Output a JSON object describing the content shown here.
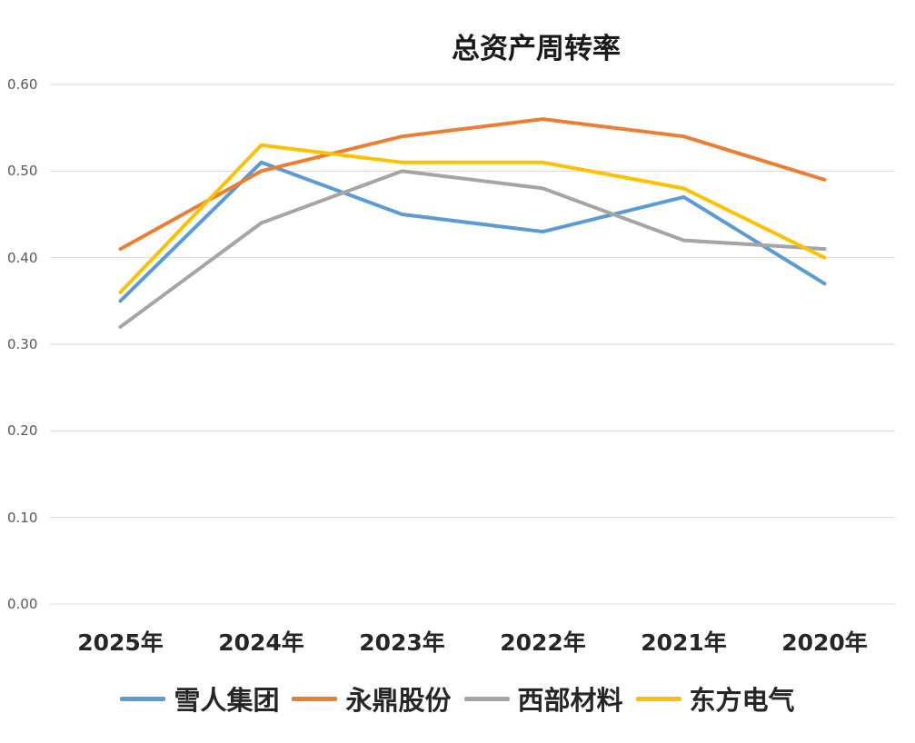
{
  "chart_data": {
    "type": "line",
    "title": "总资产周转率",
    "categories": [
      "2025年",
      "2024年",
      "2023年",
      "2022年",
      "2021年",
      "2020年"
    ],
    "series": [
      {
        "name": "雪人集团",
        "color": "#5B9BD5",
        "values": [
          0.35,
          0.51,
          0.45,
          0.43,
          0.47,
          0.37
        ]
      },
      {
        "name": "永鼎股份",
        "color": "#ED7D31",
        "values": [
          0.41,
          0.5,
          0.54,
          0.56,
          0.54,
          0.49
        ]
      },
      {
        "name": "西部材料",
        "color": "#A5A5A5",
        "values": [
          0.32,
          0.44,
          0.5,
          0.48,
          0.42,
          0.41
        ]
      },
      {
        "name": "东方电气",
        "color": "#FFC000",
        "values": [
          0.36,
          0.53,
          0.51,
          0.51,
          0.48,
          0.4
        ]
      }
    ],
    "ylim": [
      0.0,
      0.6
    ],
    "ytick_labels": [
      "0.60",
      "0.50",
      "0.40",
      "0.30",
      "0.20",
      "0.10",
      "0.00"
    ],
    "xlabel": "",
    "ylabel": "",
    "grid": "horizontal",
    "gridline_color": "#D9D9D9",
    "axis_tick_color": "#595959",
    "category_label_color": "#262626",
    "legend_position": "bottom"
  }
}
